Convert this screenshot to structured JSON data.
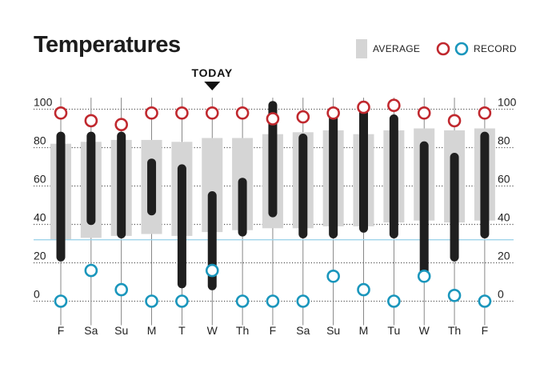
{
  "chart_data": {
    "type": "bar",
    "title": "Temperatures",
    "today_label": "TODAY",
    "today_index": 5,
    "categories": [
      "F",
      "Sa",
      "Su",
      "M",
      "T",
      "W",
      "Th",
      "F",
      "Sa",
      "Su",
      "M",
      "Tu",
      "W",
      "Th",
      "F"
    ],
    "y_ticks": [
      0,
      20,
      40,
      60,
      80,
      100
    ],
    "ylim": [
      -5,
      106
    ],
    "freezing_line": 32,
    "grid": "dotted",
    "legend": {
      "average_label": "AVERAGE",
      "record_label": "RECORD",
      "placement": "top-right"
    },
    "series": [
      {
        "name": "AVERAGE",
        "low": [
          32,
          33,
          34,
          35,
          34,
          36,
          37,
          38,
          38,
          39,
          39,
          41,
          42,
          41,
          42
        ],
        "high": [
          82,
          83,
          84,
          84,
          83,
          85,
          85,
          87,
          88,
          89,
          87,
          89,
          90,
          89,
          90
        ]
      },
      {
        "low": [
          23,
          42,
          35,
          47,
          9,
          8,
          36,
          46,
          35,
          35,
          38,
          35,
          14,
          23,
          35
        ],
        "high": [
          86,
          86,
          86,
          72,
          69,
          55,
          62,
          102,
          85,
          97,
          101,
          95,
          81,
          75,
          86
        ]
      },
      {
        "name": "RECORD",
        "low": [
          0,
          16,
          6,
          0,
          0,
          16,
          0,
          0,
          0,
          13,
          6,
          0,
          13,
          3,
          0
        ],
        "high": [
          98,
          94,
          92,
          98,
          98,
          98,
          98,
          95,
          96,
          98,
          101,
          102,
          98,
          94,
          98
        ]
      }
    ],
    "colors": {
      "average": "#d5d5d5",
      "actual": "#1f1f1f",
      "record_high": "#c0282e",
      "record_low": "#1a96bc",
      "freezing": "#9fd4ea",
      "grid": "#555555"
    }
  }
}
